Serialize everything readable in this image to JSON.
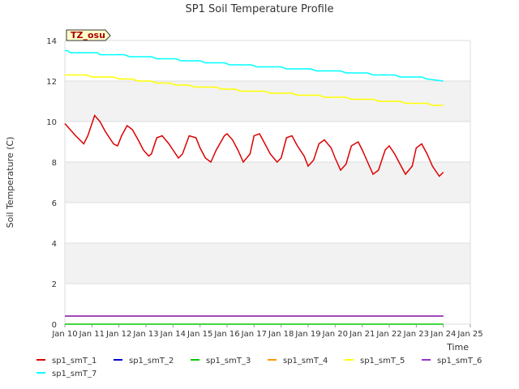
{
  "chart_data": {
    "type": "line",
    "title": "SP1 Soil Temperature Profile",
    "xlabel": "Time",
    "ylabel": "Soil Temperature (C)",
    "ylim": [
      0,
      14
    ],
    "xlim": [
      10,
      25
    ],
    "y_ticks": [
      0,
      2,
      4,
      6,
      8,
      10,
      12,
      14
    ],
    "x_ticks": [
      {
        "day": 10,
        "label": "Jan 10"
      },
      {
        "day": 11,
        "label": "Jan 11"
      },
      {
        "day": 12,
        "label": "Jan 12"
      },
      {
        "day": 13,
        "label": "Jan 13"
      },
      {
        "day": 14,
        "label": "Jan 14"
      },
      {
        "day": 15,
        "label": "Jan 15"
      },
      {
        "day": 16,
        "label": "Jan 16"
      },
      {
        "day": 17,
        "label": "Jan 17"
      },
      {
        "day": 18,
        "label": "Jan 18"
      },
      {
        "day": 19,
        "label": "Jan 19"
      },
      {
        "day": 20,
        "label": "Jan 20"
      },
      {
        "day": 21,
        "label": "Jan 21"
      },
      {
        "day": 22,
        "label": "Jan 22"
      },
      {
        "day": 23,
        "label": "Jan 23"
      },
      {
        "day": 24,
        "label": "Jan 24"
      },
      {
        "day": 25,
        "label": "Jan 25"
      }
    ],
    "grid": true,
    "banded_background": true,
    "annotation": "TZ_osu",
    "legend_placement": "bottom",
    "series": [
      {
        "name": "sp1_smT_1",
        "color": "#dd0000",
        "x": [
          10.0,
          10.4,
          10.7,
          10.85,
          11.1,
          11.3,
          11.5,
          11.8,
          11.95,
          12.1,
          12.3,
          12.5,
          12.75,
          12.9,
          13.1,
          13.2,
          13.4,
          13.6,
          13.85,
          14.0,
          14.2,
          14.35,
          14.6,
          14.85,
          15.0,
          15.2,
          15.4,
          15.6,
          15.9,
          16.0,
          16.2,
          16.4,
          16.6,
          16.85,
          17.0,
          17.2,
          17.4,
          17.6,
          17.85,
          18.0,
          18.2,
          18.4,
          18.6,
          18.85,
          19.0,
          19.2,
          19.4,
          19.6,
          19.85,
          20.0,
          20.2,
          20.4,
          20.6,
          20.85,
          21.0,
          21.2,
          21.4,
          21.6,
          21.85,
          22.0,
          22.2,
          22.4,
          22.6,
          22.85,
          23.0,
          23.2,
          23.4,
          23.6,
          23.85,
          24.0
        ],
        "y": [
          9.9,
          9.3,
          8.9,
          9.3,
          10.3,
          10.0,
          9.5,
          8.9,
          8.8,
          9.3,
          9.8,
          9.6,
          9.0,
          8.6,
          8.3,
          8.4,
          9.2,
          9.3,
          8.9,
          8.6,
          8.2,
          8.4,
          9.3,
          9.2,
          8.7,
          8.2,
          8.0,
          8.6,
          9.3,
          9.4,
          9.1,
          8.6,
          8.0,
          8.4,
          9.3,
          9.4,
          8.9,
          8.4,
          8.0,
          8.2,
          9.2,
          9.3,
          8.8,
          8.3,
          7.8,
          8.1,
          8.9,
          9.1,
          8.7,
          8.2,
          7.6,
          7.9,
          8.8,
          9.0,
          8.6,
          8.0,
          7.4,
          7.6,
          8.6,
          8.8,
          8.4,
          7.9,
          7.4,
          7.8,
          8.7,
          8.9,
          8.4,
          7.8,
          7.3,
          7.5
        ]
      },
      {
        "name": "sp1_smT_2",
        "color": "#0000cc",
        "x": [
          10.0,
          24.0
        ],
        "y": [
          0.4,
          0.4
        ]
      },
      {
        "name": "sp1_smT_3",
        "color": "#00cc00",
        "x": [
          10.0,
          24.0
        ],
        "y": [
          0.0,
          0.0
        ]
      },
      {
        "name": "sp1_smT_4",
        "color": "#ff9900",
        "x": [
          10.0,
          24.0
        ],
        "y": [
          0.4,
          0.4
        ]
      },
      {
        "name": "sp1_smT_5",
        "color": "#ffff00",
        "x": [
          10.0,
          10.8,
          11.0,
          11.8,
          12.0,
          12.5,
          12.7,
          13.2,
          13.4,
          13.9,
          14.1,
          14.6,
          14.8,
          15.6,
          15.8,
          16.3,
          16.5,
          17.4,
          17.6,
          18.4,
          18.6,
          19.4,
          19.6,
          20.4,
          20.6,
          21.4,
          21.6,
          22.4,
          22.6,
          23.4,
          23.6,
          24.0
        ],
        "y": [
          12.3,
          12.3,
          12.2,
          12.2,
          12.1,
          12.1,
          12.0,
          12.0,
          11.9,
          11.9,
          11.8,
          11.8,
          11.7,
          11.7,
          11.6,
          11.6,
          11.5,
          11.5,
          11.4,
          11.4,
          11.3,
          11.3,
          11.2,
          11.2,
          11.1,
          11.1,
          11.0,
          11.0,
          10.9,
          10.9,
          10.8,
          10.8
        ]
      },
      {
        "name": "sp1_smT_6",
        "color": "#9933cc",
        "x": [
          10.0,
          24.0
        ],
        "y": [
          0.4,
          0.4
        ]
      },
      {
        "name": "sp1_smT_7",
        "color": "#00ffff",
        "x": [
          10.0,
          10.1,
          10.2,
          11.2,
          11.3,
          12.2,
          12.4,
          13.2,
          13.4,
          14.1,
          14.3,
          15.0,
          15.2,
          15.9,
          16.1,
          16.9,
          17.1,
          18.0,
          18.2,
          19.1,
          19.3,
          20.2,
          20.4,
          21.2,
          21.4,
          22.2,
          22.4,
          23.2,
          23.4,
          24.0
        ],
        "y": [
          13.5,
          13.5,
          13.4,
          13.4,
          13.3,
          13.3,
          13.2,
          13.2,
          13.1,
          13.1,
          13.0,
          13.0,
          12.9,
          12.9,
          12.8,
          12.8,
          12.7,
          12.7,
          12.6,
          12.6,
          12.5,
          12.5,
          12.4,
          12.4,
          12.3,
          12.3,
          12.2,
          12.2,
          12.1,
          12.0
        ]
      }
    ]
  }
}
